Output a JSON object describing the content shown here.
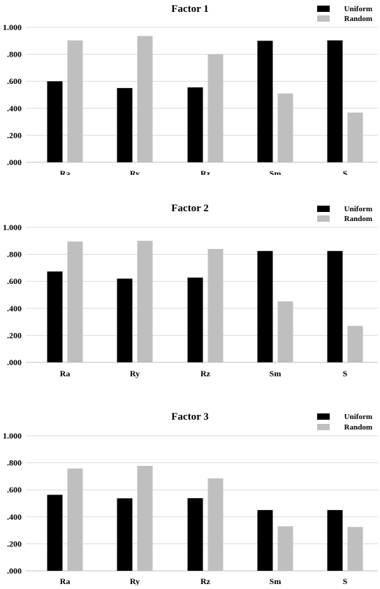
{
  "colors": {
    "uniform": "#000000",
    "random": "#bfbfbf",
    "grid": "#d9d9d9"
  },
  "chart_data": [
    {
      "type": "bar",
      "title": "Factor 1",
      "categories": [
        "Ra",
        "Ry",
        "Rz",
        "Sm",
        "S"
      ],
      "series": [
        {
          "name": "Uniform",
          "values": [
            0.6,
            0.55,
            0.555,
            0.9,
            0.903
          ]
        },
        {
          "name": "Random",
          "values": [
            0.903,
            0.935,
            0.8,
            0.51,
            0.368
          ]
        }
      ],
      "yticks": [
        ".000",
        ".200",
        ".400",
        ".600",
        ".800",
        "1.000"
      ],
      "ylim": [
        0,
        1
      ],
      "grid": true,
      "legend": "top-right"
    },
    {
      "type": "bar",
      "title": "Factor 2",
      "categories": [
        "Ra",
        "Ry",
        "Rz",
        "Sm",
        "S"
      ],
      "series": [
        {
          "name": "Uniform",
          "values": [
            0.673,
            0.62,
            0.628,
            0.825,
            0.825
          ]
        },
        {
          "name": "Random",
          "values": [
            0.895,
            0.9,
            0.84,
            0.452,
            0.27
          ]
        }
      ],
      "yticks": [
        ".000",
        ".200",
        ".400",
        ".600",
        ".800",
        "1.000"
      ],
      "ylim": [
        0,
        1
      ],
      "grid": true,
      "legend": "top-right"
    },
    {
      "type": "bar",
      "title": "Factor 3",
      "categories": [
        "Ra",
        "Ry",
        "Rz",
        "Sm",
        "S"
      ],
      "series": [
        {
          "name": "Uniform",
          "values": [
            0.563,
            0.537,
            0.538,
            0.45,
            0.45
          ]
        },
        {
          "name": "Random",
          "values": [
            0.758,
            0.777,
            0.685,
            0.33,
            0.325
          ]
        }
      ],
      "yticks": [
        ".000",
        ".200",
        ".400",
        ".600",
        ".800",
        "1.000"
      ],
      "ylim": [
        0,
        1
      ],
      "grid": true,
      "legend": "top-right"
    }
  ]
}
